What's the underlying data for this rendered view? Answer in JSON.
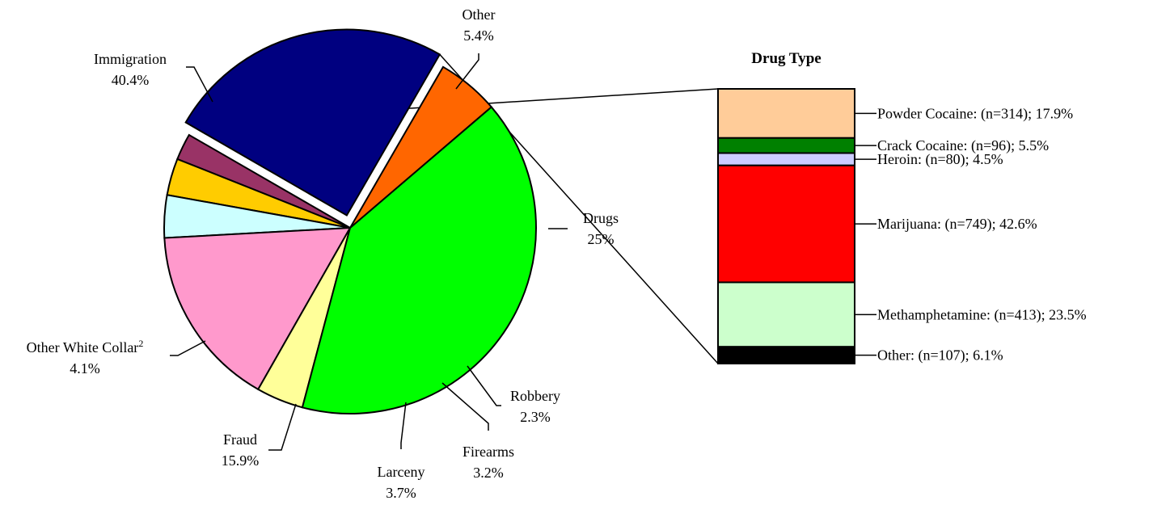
{
  "chart_data": [
    {
      "type": "pie",
      "title": "",
      "slices": [
        {
          "label": "Drugs",
          "value_label": "25%",
          "value": 25.0,
          "color": "#000080",
          "exploded": true
        },
        {
          "label": "Robbery",
          "value_label": "2.3%",
          "value": 2.3,
          "color": "#993366"
        },
        {
          "label": "Firearms",
          "value_label": "3.2%",
          "value": 3.2,
          "color": "#FFCC00"
        },
        {
          "label": "Larceny",
          "value_label": "3.7%",
          "value": 3.7,
          "color": "#CCFFFF"
        },
        {
          "label": "Fraud",
          "value_label": "15.9%",
          "value": 15.9,
          "color": "#FF99CC"
        },
        {
          "label": "Other White Collar",
          "label_sup": "2",
          "value_label": "4.1%",
          "value": 4.1,
          "color": "#FFFF99"
        },
        {
          "label": "Immigration",
          "value_label": "40.4%",
          "value": 40.4,
          "color": "#00FF00"
        },
        {
          "label": "Other",
          "value_label": "5.4%",
          "value": 5.4,
          "color": "#FF6600"
        }
      ]
    },
    {
      "type": "bar",
      "stacked": true,
      "title": "Drug Type",
      "segments": [
        {
          "name": "Powder Cocaine",
          "n": 314,
          "percent": 17.9,
          "label": "Powder Cocaine: (n=314); 17.9%",
          "color": "#FFCC99"
        },
        {
          "name": "Crack Cocaine",
          "n": 96,
          "percent": 5.5,
          "label": "Crack Cocaine: (n=96); 5.5%",
          "color": "#008000"
        },
        {
          "name": "Heroin",
          "n": 80,
          "percent": 4.5,
          "label": "Heroin: (n=80); 4.5%",
          "color": "#CCCCFF"
        },
        {
          "name": "Marijuana",
          "n": 749,
          "percent": 42.6,
          "label": "Marijuana: (n=749); 42.6%",
          "color": "#FF0000"
        },
        {
          "name": "Methamphetamine",
          "n": 413,
          "percent": 23.5,
          "label": "Methamphetamine: (n=413); 23.5%",
          "color": "#CCFFCC"
        },
        {
          "name": "Other",
          "n": 107,
          "percent": 6.1,
          "label": "Other: (n=107); 6.1%",
          "color": "#000000"
        }
      ]
    }
  ]
}
